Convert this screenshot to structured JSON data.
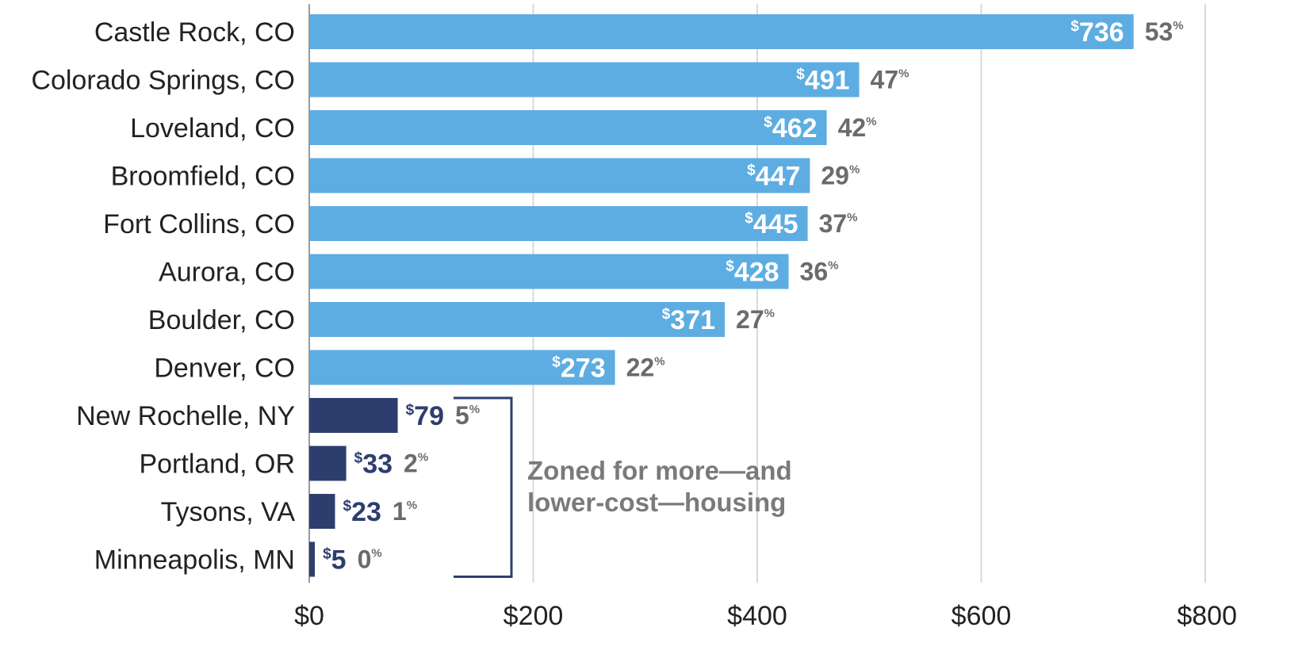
{
  "chart_data": {
    "type": "bar",
    "orientation": "horizontal",
    "categories": [
      "Castle Rock, CO",
      "Colorado Springs, CO",
      "Loveland, CO",
      "Broomfield, CO",
      "Fort Collins, CO",
      "Aurora, CO",
      "Boulder, CO",
      "Denver, CO",
      "New Rochelle, NY",
      "Portland, OR",
      "Tysons, VA",
      "Minneapolis, MN"
    ],
    "values": [
      736,
      491,
      462,
      447,
      445,
      428,
      371,
      273,
      79,
      33,
      23,
      5
    ],
    "value_labels": [
      "736",
      "491",
      "462",
      "447",
      "445",
      "428",
      "371",
      "273",
      "79",
      "33",
      "23",
      "5"
    ],
    "value_prefix": "$",
    "percent_labels": [
      "53",
      "47",
      "42",
      "29",
      "37",
      "36",
      "27",
      "22",
      "5",
      "2",
      "1",
      "0"
    ],
    "percent_suffix": "%",
    "groups": [
      "colorado",
      "colorado",
      "colorado",
      "colorado",
      "colorado",
      "colorado",
      "colorado",
      "colorado",
      "zoned",
      "zoned",
      "zoned",
      "zoned"
    ],
    "colors": {
      "colorado": "#5dade2",
      "zoned": "#2d3e6e",
      "grid": "#d9d9d9",
      "bracket": "#2d3e6e"
    },
    "xlim": [
      0,
      800
    ],
    "xticks": [
      0,
      200,
      400,
      600,
      800
    ],
    "xtick_labels": [
      "$0",
      "$200",
      "$400",
      "$600",
      "$800"
    ],
    "grid": "vertical",
    "title": "",
    "xlabel": "",
    "ylabel": "",
    "annotation": {
      "lines": [
        "Zoned for more—and",
        "lower-cost—housing"
      ],
      "applies_to": [
        "New Rochelle, NY",
        "Portland, OR",
        "Tysons, VA",
        "Minneapolis, MN"
      ]
    }
  }
}
